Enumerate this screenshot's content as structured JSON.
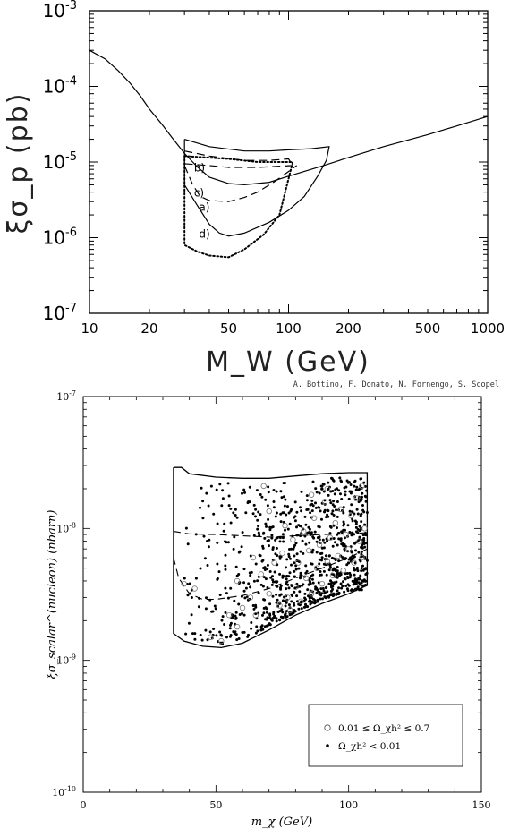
{
  "chart_data": [
    {
      "type": "line",
      "title": "",
      "xlabel": "M_W (GeV)",
      "ylabel": "ξσ_p (pb)",
      "x_scale": "log",
      "y_scale": "log",
      "xlim": [
        10,
        1000
      ],
      "ylim": [
        1e-07,
        0.001
      ],
      "x_ticks": [
        "10",
        "20",
        "50",
        "100",
        "200",
        "500",
        "1000"
      ],
      "y_ticks": [
        {
          "mant": "10",
          "exp": "-7"
        },
        {
          "mant": "10",
          "exp": "-6"
        },
        {
          "mant": "10",
          "exp": "-5"
        },
        {
          "mant": "10",
          "exp": "-4"
        },
        {
          "mant": "10",
          "exp": "-3"
        }
      ],
      "curve_labels": [
        "b)",
        "c)",
        "a)",
        "d)"
      ],
      "series": [
        {
          "style": "solid",
          "kind": "exclusion",
          "points": [
            [
              10,
              0.0003
            ],
            [
              12,
              0.00023
            ],
            [
              14,
              0.00016
            ],
            [
              16,
              0.00011
            ],
            [
              18,
              7.5e-05
            ],
            [
              20,
              5e-05
            ],
            [
              23,
              3.2e-05
            ],
            [
              26,
              2.1e-05
            ],
            [
              30,
              1.3e-05
            ],
            [
              35,
              8.5e-06
            ],
            [
              40,
              6.3e-06
            ],
            [
              50,
              5.2e-06
            ],
            [
              60,
              5e-06
            ],
            [
              80,
              5.4e-06
            ],
            [
              100,
              6.5e-06
            ],
            [
              150,
              9e-06
            ],
            [
              200,
              1.15e-05
            ],
            [
              300,
              1.6e-05
            ],
            [
              500,
              2.3e-05
            ],
            [
              700,
              3e-05
            ],
            [
              1000,
              4e-05
            ]
          ]
        },
        {
          "style": "solid",
          "kind": "region-a",
          "points": [
            [
              30,
              2e-05
            ],
            [
              40,
              1.6e-05
            ],
            [
              60,
              1.4e-05
            ],
            [
              80,
              1.4e-05
            ],
            [
              100,
              1.45e-05
            ],
            [
              130,
              1.5e-05
            ],
            [
              160,
              1.6e-05
            ],
            [
              155,
              1.05e-05
            ],
            [
              140,
              6.5e-06
            ],
            [
              120,
              3.5e-06
            ],
            [
              100,
              2.3e-06
            ],
            [
              80,
              1.6e-06
            ],
            [
              60,
              1.15e-06
            ],
            [
              50,
              1.05e-06
            ],
            [
              45,
              1.15e-06
            ],
            [
              40,
              1.5e-06
            ],
            [
              35,
              2.6e-06
            ],
            [
              30,
              5e-06
            ],
            [
              30,
              2e-05
            ]
          ]
        },
        {
          "style": "dashed",
          "kind": "region-b",
          "points": [
            [
              30,
              1.4e-05
            ],
            [
              40,
              1.2e-05
            ],
            [
              60,
              1.05e-05
            ],
            [
              80,
              1.05e-05
            ],
            [
              100,
              1.1e-05
            ],
            [
              105,
              9e-06
            ],
            [
              70,
              8.5e-06
            ],
            [
              50,
              8.5e-06
            ],
            [
              40,
              9e-06
            ],
            [
              30,
              9.5e-06
            ]
          ]
        },
        {
          "style": "dashed",
          "kind": "region-c",
          "points": [
            [
              30,
              9e-06
            ],
            [
              33,
              5e-06
            ],
            [
              36,
              3.5e-06
            ],
            [
              40,
              3.1e-06
            ],
            [
              50,
              3e-06
            ],
            [
              60,
              3.4e-06
            ],
            [
              70,
              4e-06
            ],
            [
              85,
              5.5e-06
            ],
            [
              100,
              7.5e-06
            ],
            [
              110,
              9e-06
            ]
          ]
        },
        {
          "style": "dotted",
          "kind": "region-d",
          "points": [
            [
              30,
              1.2e-05
            ],
            [
              50,
              1.1e-05
            ],
            [
              70,
              1e-05
            ],
            [
              85,
              1e-05
            ],
            [
              100,
              1e-05
            ],
            [
              105,
              1e-05
            ],
            [
              90,
              2e-06
            ],
            [
              75,
              1.1e-06
            ],
            [
              60,
              7e-07
            ],
            [
              50,
              5.5e-07
            ],
            [
              40,
              5.8e-07
            ],
            [
              35,
              6.5e-07
            ],
            [
              30,
              8e-07
            ],
            [
              30,
              1.2e-05
            ]
          ]
        }
      ]
    },
    {
      "type": "scatter",
      "title": "",
      "credit": "A. Bottino, F. Donato, N. Fornengo, S. Scopel",
      "xlabel": "m_χ (GeV)",
      "ylabel": "ξσ_scalar^(nucleon) (nbarn)",
      "x_scale": "linear",
      "y_scale": "log",
      "xlim": [
        0,
        150
      ],
      "ylim": [
        1e-10,
        1e-07
      ],
      "x_ticks": [
        "0",
        "50",
        "100",
        "150"
      ],
      "y_ticks": [
        {
          "mant": "10",
          "exp": "-10"
        },
        {
          "mant": "10",
          "exp": "-9"
        },
        {
          "mant": "10",
          "exp": "-8"
        },
        {
          "mant": "10",
          "exp": "-7"
        }
      ],
      "legend": {
        "position": "bottom-right",
        "entries": [
          {
            "marker": "open-circle",
            "label": "0.01 ≤ Ω_χh² ≤ 0.7"
          },
          {
            "marker": "filled-dot",
            "label": "Ω_χh² < 0.01"
          }
        ]
      },
      "boundary": [
        [
          34,
          2.9e-08
        ],
        [
          37,
          2.9e-08
        ],
        [
          40,
          2.6e-08
        ],
        [
          50,
          2.45e-08
        ],
        [
          60,
          2.4e-08
        ],
        [
          70,
          2.4e-08
        ],
        [
          80,
          2.5e-08
        ],
        [
          90,
          2.6e-08
        ],
        [
          100,
          2.65e-08
        ],
        [
          107,
          2.65e-08
        ],
        [
          107,
          3.7e-09
        ],
        [
          100,
          3.2e-09
        ],
        [
          90,
          2.7e-09
        ],
        [
          80,
          2.2e-09
        ],
        [
          70,
          1.7e-09
        ],
        [
          60,
          1.35e-09
        ],
        [
          52,
          1.25e-09
        ],
        [
          45,
          1.28e-09
        ],
        [
          38,
          1.4e-09
        ],
        [
          34,
          1.6e-09
        ],
        [
          34,
          2.9e-08
        ]
      ],
      "dashed_upper": [
        [
          34,
          9.5e-09
        ],
        [
          40,
          9.1e-09
        ],
        [
          50,
          9e-09
        ],
        [
          60,
          8.8e-09
        ],
        [
          70,
          8.6e-09
        ],
        [
          80,
          8.8e-09
        ],
        [
          90,
          9e-09
        ],
        [
          100,
          9.1e-09
        ],
        [
          107,
          9.3e-09
        ]
      ],
      "dashed_lower": [
        [
          34,
          6e-09
        ],
        [
          36,
          4.2e-09
        ],
        [
          40,
          3.2e-09
        ],
        [
          45,
          2.9e-09
        ],
        [
          50,
          2.9e-09
        ],
        [
          60,
          3.1e-09
        ],
        [
          70,
          3.5e-09
        ],
        [
          80,
          4.2e-09
        ],
        [
          90,
          5e-09
        ],
        [
          100,
          6e-09
        ],
        [
          107,
          7e-09
        ]
      ],
      "open_circles": [
        [
          68,
          2.1e-08
        ],
        [
          105,
          2.1e-08
        ],
        [
          38,
          3.8e-09
        ],
        [
          42,
          3.5e-09
        ],
        [
          48,
          1.5e-09
        ],
        [
          52,
          1.4e-09
        ],
        [
          55,
          2.2e-09
        ],
        [
          58,
          1.8e-09
        ],
        [
          60,
          2.5e-09
        ],
        [
          63,
          3e-09
        ],
        [
          65,
          2.2e-09
        ],
        [
          67,
          4.5e-09
        ],
        [
          70,
          3.2e-09
        ],
        [
          72,
          5.5e-09
        ],
        [
          74,
          2.6e-09
        ],
        [
          75,
          6.5e-09
        ],
        [
          77,
          3e-09
        ],
        [
          78,
          2.4e-09
        ],
        [
          79,
          8.2e-09
        ],
        [
          80,
          3.6e-09
        ],
        [
          81,
          5.5e-09
        ],
        [
          82,
          2.8e-09
        ],
        [
          83,
          9.5e-09
        ],
        [
          84,
          4.2e-09
        ],
        [
          85,
          6.8e-09
        ],
        [
          86,
          3.2e-09
        ],
        [
          87,
          1.2e-08
        ],
        [
          88,
          5e-09
        ],
        [
          89,
          7.5e-09
        ],
        [
          90,
          3.8e-09
        ],
        [
          91,
          1.6e-08
        ],
        [
          92,
          5.6e-09
        ],
        [
          93,
          8.5e-09
        ],
        [
          94,
          4.4e-09
        ],
        [
          95,
          1.1e-08
        ],
        [
          96,
          6.2e-09
        ],
        [
          97,
          1.4e-08
        ],
        [
          98,
          4.8e-09
        ],
        [
          99,
          9e-09
        ],
        [
          100,
          7e-09
        ],
        [
          101,
          1.25e-08
        ],
        [
          102,
          5.5e-09
        ],
        [
          103,
          1.7e-08
        ],
        [
          104,
          8e-09
        ],
        [
          105,
          6e-09
        ],
        [
          106,
          1e-08
        ],
        [
          76,
          1.05e-08
        ],
        [
          70,
          1.35e-08
        ],
        [
          64,
          6e-09
        ],
        [
          86,
          1.8e-08
        ],
        [
          92,
          2e-08
        ],
        [
          58,
          4e-09
        ]
      ]
    }
  ]
}
